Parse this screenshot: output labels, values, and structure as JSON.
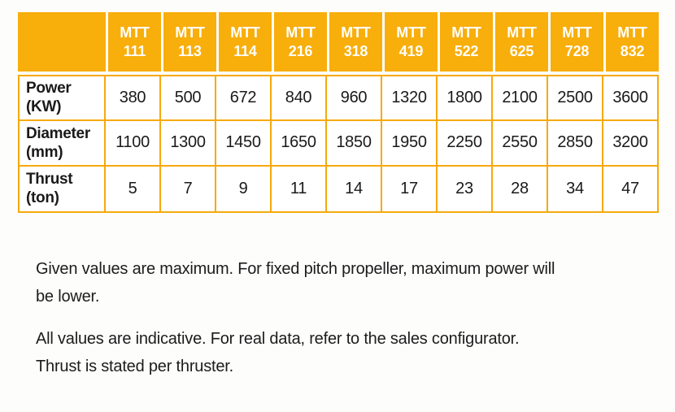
{
  "colors": {
    "header_bg": "#F8AE0B",
    "table_border": "#F6A90C",
    "header_text": "#FFFFFF",
    "body_text": "#1A1A1A"
  },
  "table": {
    "corner_label": "",
    "columns": [
      {
        "brand": "MTT",
        "num": "111"
      },
      {
        "brand": "MTT",
        "num": "113"
      },
      {
        "brand": "MTT",
        "num": "114"
      },
      {
        "brand": "MTT",
        "num": "216"
      },
      {
        "brand": "MTT",
        "num": "318"
      },
      {
        "brand": "MTT",
        "num": "419"
      },
      {
        "brand": "MTT",
        "num": "522"
      },
      {
        "brand": "MTT",
        "num": "625"
      },
      {
        "brand": "MTT",
        "num": "728"
      },
      {
        "brand": "MTT",
        "num": "832"
      }
    ],
    "rows": [
      {
        "name": "Power",
        "unit": "(KW)",
        "values": [
          "380",
          "500",
          "672",
          "840",
          "960",
          "1320",
          "1800",
          "2100",
          "2500",
          "3600"
        ]
      },
      {
        "name": "Diameter",
        "unit": "(mm)",
        "values": [
          "1100",
          "1300",
          "1450",
          "1650",
          "1850",
          "1950",
          "2250",
          "2550",
          "2850",
          "3200"
        ]
      },
      {
        "name": "Thrust",
        "unit": "(ton)",
        "values": [
          "5",
          "7",
          "9",
          "11",
          "14",
          "17",
          "23",
          "28",
          "34",
          "47"
        ]
      }
    ]
  },
  "notes": [
    "Given values are maximum. For fixed pitch propeller, maximum power will\nbe lower.",
    "All values are indicative. For real data, refer to the sales configurator.\nThrust is stated per thruster."
  ]
}
